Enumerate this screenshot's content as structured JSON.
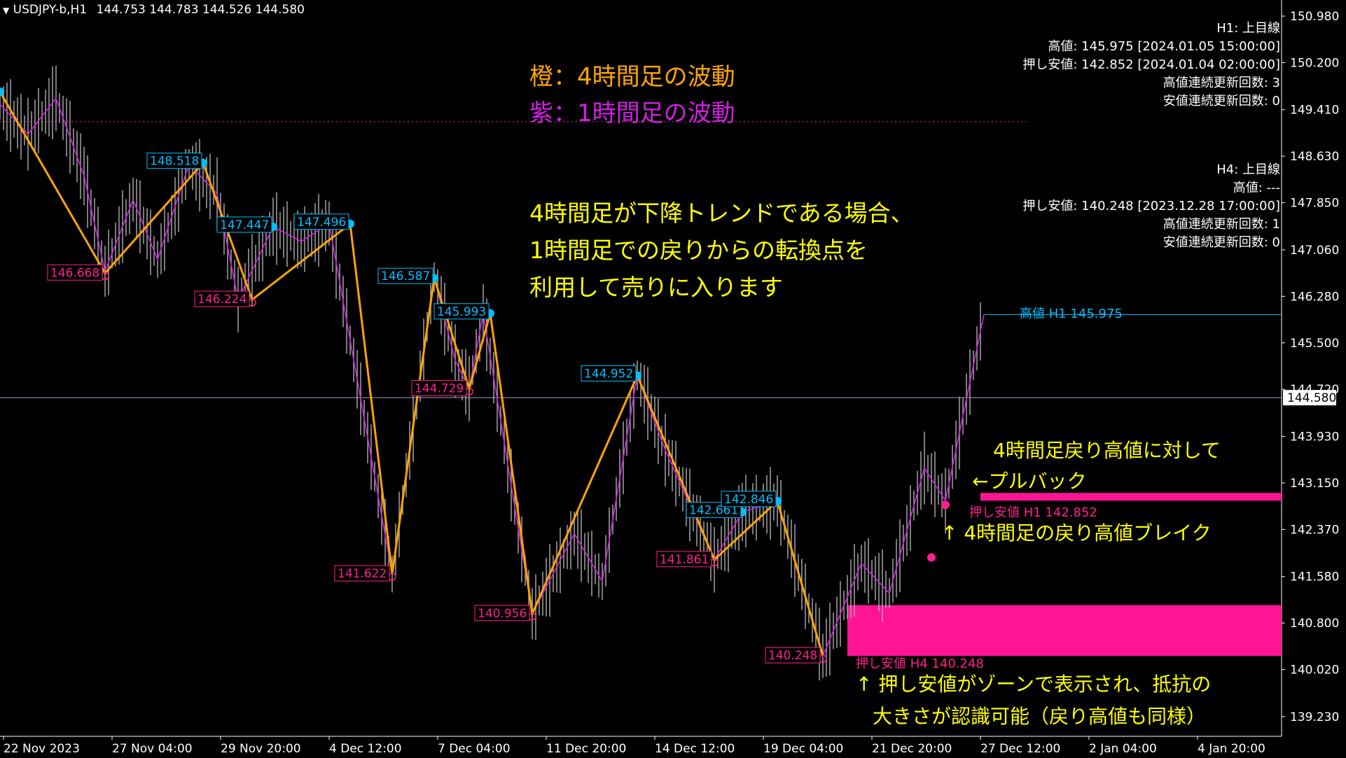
{
  "header": {
    "symbol_label": "USDJPY-b,H1",
    "ohlc": "144.753 144.783 144.526 144.580"
  },
  "legend": {
    "orange": "橙：4時間足の波動",
    "purple": "紫：1時間足の波動"
  },
  "annotations": {
    "strategy": [
      "4時間足が下降トレンドである場合、",
      "1時間足での戻りからの転換点を",
      "利用して売りに入ります"
    ],
    "pullback_1": "4時間足戻り高値に対して",
    "pullback_2": "←プルバック",
    "break": "↑ 4時間足の戻り高値ブレイク",
    "zone_1": "↑ 押し安値がゾーンで表示され、抵抗の",
    "zone_2": "大きさが認識可能（戻り高値も同様）",
    "h1_high_line": "高値 H1 145.975",
    "h1_low_line": "押し安値 H1 142.852",
    "h4_low_line": "押し安値 H4 140.248"
  },
  "info_h1": [
    "H1: 上目線",
    "高値: 145.975 [2024.01.05 15:00:00]",
    "押し安値: 142.852 [2024.01.04 02:00:00]",
    "高値連続更新回数: 3",
    "安値連続更新回数: 0"
  ],
  "info_h4": [
    "H4: 上目線",
    "高値: ---",
    "押し安値: 140.248 [2023.12.28 17:00:00]",
    "高値連続更新回数: 1",
    "安値連続更新回数: 0"
  ],
  "colors": {
    "background": "#000000",
    "orange_wave": "#ffa500",
    "purple_wave": "#d020e0",
    "high_label": "#00bfff",
    "low_label": "#ff1f8e",
    "zone": "#ff1493",
    "text_yellow": "#ffff00",
    "axis": "#ffffff"
  },
  "chart_data": {
    "type": "line",
    "symbol": "USDJPY-b",
    "timeframe": "H1",
    "ylim": [
      138.9,
      151.25
    ],
    "y_ticks": [
      "150.980",
      "150.200",
      "149.410",
      "148.630",
      "147.850",
      "147.060",
      "146.280",
      "145.500",
      "144.720",
      "143.930",
      "143.150",
      "142.370",
      "141.580",
      "140.800",
      "140.020",
      "139.230"
    ],
    "x_ticks": [
      "22 Nov 2023",
      "27 Nov 04:00",
      "29 Nov 20:00",
      "4 Dec 12:00",
      "7 Dec 04:00",
      "11 Dec 20:00",
      "14 Dec 12:00",
      "19 Dec 04:00",
      "21 Dec 20:00",
      "27 Dec 12:00",
      "2 Jan 04:00",
      "4 Jan 20:00"
    ],
    "current_price": "144.580",
    "series": [
      {
        "name": "橙：4時間足の波動",
        "points": [
          [
            0.0,
            149.71
          ],
          [
            1.5,
            146.668
          ],
          [
            2.9,
            148.518
          ],
          [
            3.6,
            146.224
          ],
          [
            5.0,
            147.496
          ],
          [
            5.6,
            141.622
          ],
          [
            6.2,
            146.587
          ],
          [
            6.7,
            144.729
          ],
          [
            7.0,
            145.993
          ],
          [
            7.6,
            140.956
          ],
          [
            9.1,
            144.952
          ],
          [
            10.2,
            141.861
          ],
          [
            11.1,
            142.846
          ],
          [
            11.75,
            140.248
          ]
        ]
      },
      {
        "name": "紫：1時間足の波動",
        "points": [
          [
            0.0,
            149.5
          ],
          [
            0.4,
            149.0
          ],
          [
            0.8,
            149.6
          ],
          [
            1.2,
            148.3
          ],
          [
            1.5,
            146.7
          ],
          [
            1.9,
            147.9
          ],
          [
            2.25,
            146.9
          ],
          [
            2.7,
            148.5
          ],
          [
            3.1,
            148.0
          ],
          [
            3.4,
            146.224
          ],
          [
            3.9,
            147.447
          ],
          [
            4.3,
            147.2
          ],
          [
            4.7,
            147.5
          ],
          [
            5.6,
            141.622
          ],
          [
            6.2,
            146.6
          ],
          [
            6.5,
            145.2
          ],
          [
            6.7,
            144.729
          ],
          [
            6.9,
            145.993
          ],
          [
            7.6,
            140.956
          ],
          [
            8.2,
            142.3
          ],
          [
            8.6,
            141.5
          ],
          [
            9.1,
            144.952
          ],
          [
            9.5,
            143.7
          ],
          [
            10.2,
            141.861
          ],
          [
            10.6,
            142.661
          ],
          [
            11.1,
            142.846
          ],
          [
            11.75,
            140.248
          ],
          [
            12.3,
            141.8
          ],
          [
            12.7,
            141.3
          ],
          [
            13.2,
            143.4
          ],
          [
            13.5,
            142.852
          ],
          [
            14.05,
            145.975
          ]
        ]
      }
    ],
    "high_labels": [
      "149.710",
      "148.518",
      "147.447",
      "147.496",
      "146.587",
      "145.993",
      "144.952",
      "142.661",
      "142.846"
    ],
    "low_labels": [
      "146.668",
      "146.224",
      "141.622",
      "144.729",
      "140.956",
      "141.861",
      "140.248"
    ],
    "levels": {
      "h1_high": 145.975,
      "h1_pushed_low": 142.852,
      "h4_pushed_low": 140.248
    }
  }
}
